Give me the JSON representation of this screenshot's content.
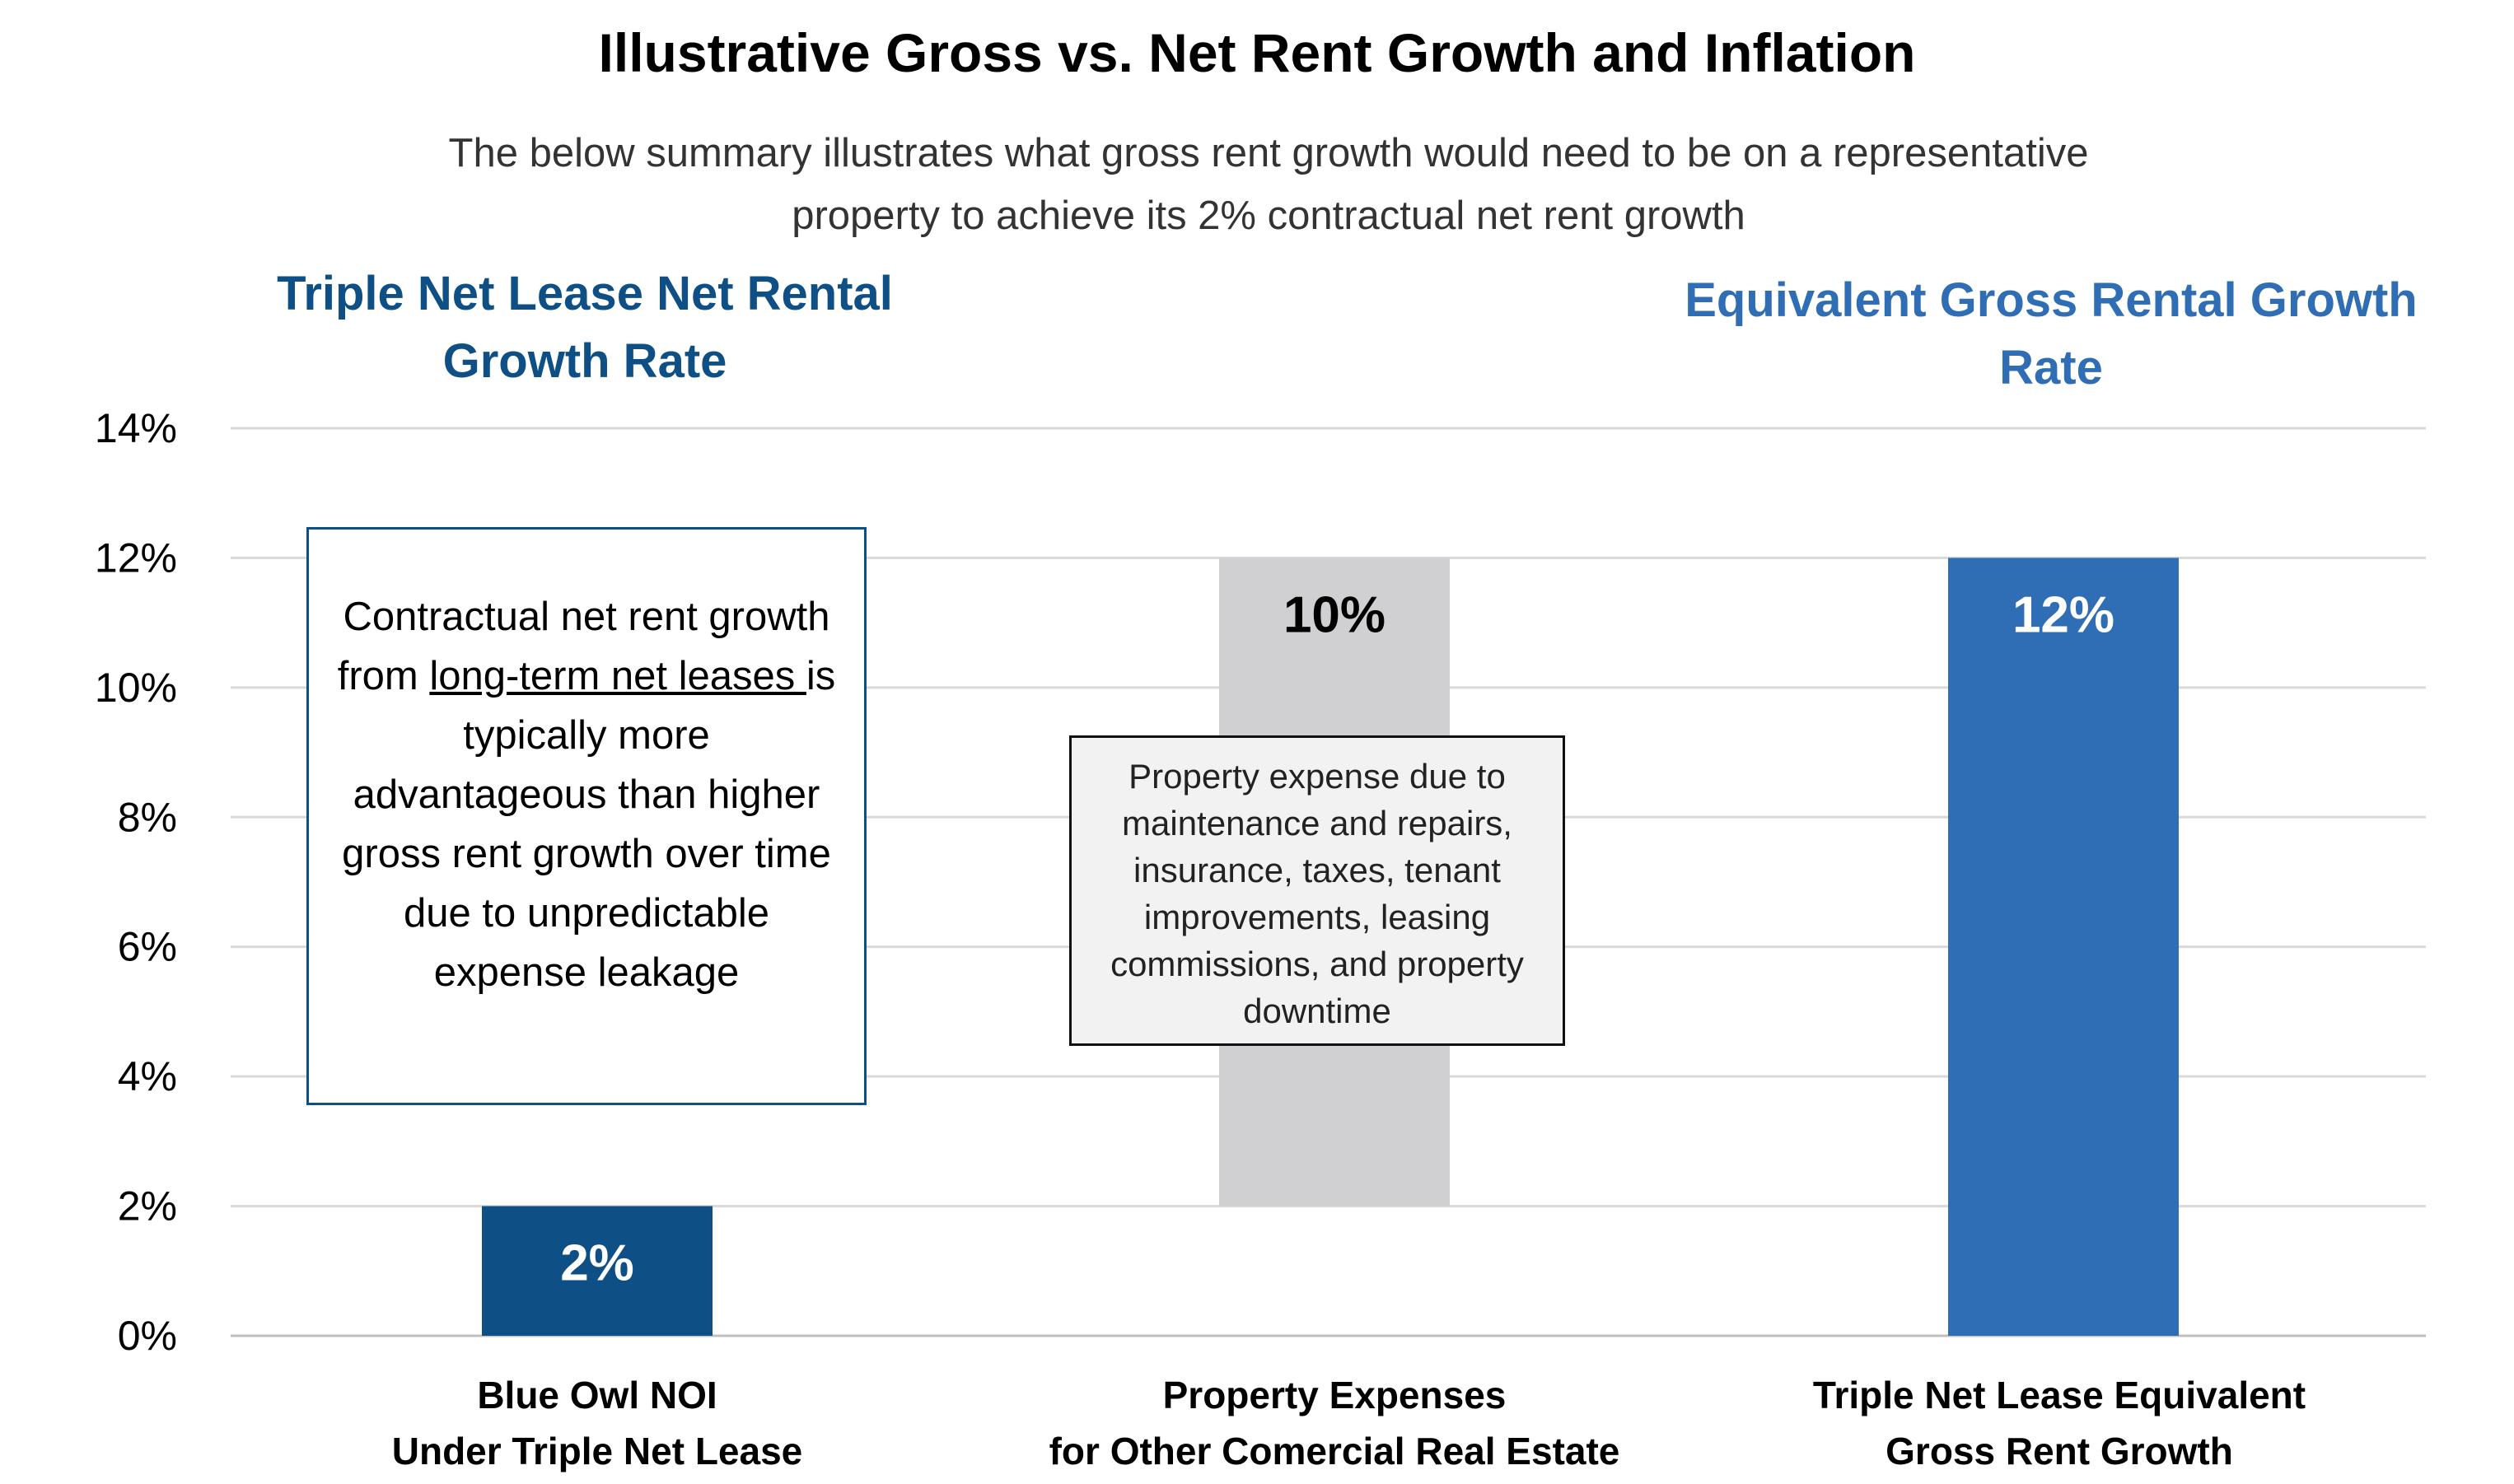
{
  "title": "Illustrative Gross vs. Net Rent Growth and Inflation",
  "subtitle": "The below summary illustrates what gross rent growth would need to be on a representative property to achieve its 2% contractual net rent growth",
  "headers": {
    "left": "Triple Net Lease Net Rental Growth Rate",
    "right": "Equivalent Gross Rental Growth Rate"
  },
  "notes": {
    "left_before": "Contractual net rent growth from ",
    "left_link": "long-term net leases ",
    "left_after": "is typically more advantageous than higher gross rent growth over time due to unpredictable expense leakage",
    "middle": "Property expense due to maintenance and repairs, insurance, taxes, tenant improvements, leasing commissions, and property downtime"
  },
  "chart_data": {
    "type": "bar",
    "stacked_waterfall": true,
    "categories": [
      "Blue Owl NOI\nUnder Triple Net Lease",
      "Property Expenses\nfor Other Comercial Real Estate",
      "Triple Net Lease Equivalent\nGross Rent Growth"
    ],
    "bars": [
      {
        "base": 0,
        "value": 2,
        "label": "2%",
        "color": "#0e5085",
        "label_color": "#ffffff"
      },
      {
        "base": 2,
        "value": 10,
        "label": "10%",
        "color": "#d0d0d2",
        "label_color": "#000000"
      },
      {
        "base": 0,
        "value": 12,
        "label": "12%",
        "color": "#2f6db5",
        "label_color": "#ffffff"
      }
    ],
    "yticks": [
      "0%",
      "2%",
      "4%",
      "6%",
      "8%",
      "10%",
      "12%",
      "14%"
    ],
    "ylim": [
      0,
      14
    ],
    "grid": true,
    "gridcolor": "#d9d9d9"
  }
}
